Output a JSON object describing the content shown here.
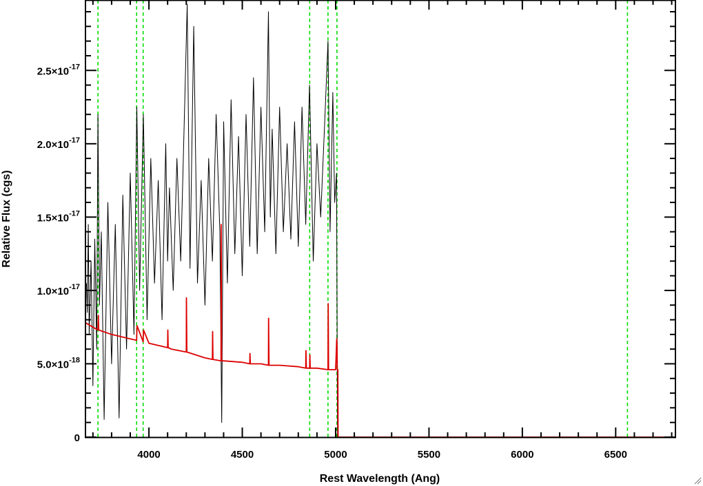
{
  "chart_data": {
    "type": "line",
    "xlabel": "Rest Wavelength (Ang)",
    "ylabel": "Relative Flux (cgs)",
    "xlim": [
      3660,
      6820
    ],
    "ylim": [
      0,
      2.98e-17
    ],
    "x_ticks": [
      {
        "value": 4000,
        "label": "4000"
      },
      {
        "value": 4500,
        "label": "4500"
      },
      {
        "value": 5000,
        "label": "5000"
      },
      {
        "value": 5500,
        "label": "5500"
      },
      {
        "value": 6000,
        "label": "6000"
      },
      {
        "value": 6500,
        "label": "6500"
      }
    ],
    "y_ticks": [
      {
        "value": 0,
        "mantissa": "0",
        "exponent": ""
      },
      {
        "value": 5e-18,
        "mantissa": "5.0×10",
        "exponent": "-18"
      },
      {
        "value": 1e-17,
        "mantissa": "1.0×10",
        "exponent": "-17"
      },
      {
        "value": 1.5e-17,
        "mantissa": "1.5×10",
        "exponent": "-17"
      },
      {
        "value": 2e-17,
        "mantissa": "2.0×10",
        "exponent": "-17"
      },
      {
        "value": 2.5e-17,
        "mantissa": "2.5×10",
        "exponent": "-17"
      }
    ],
    "vertical_lines": [
      3727,
      3934,
      3969,
      4861,
      4959,
      5007,
      6563
    ],
    "grid": false,
    "colors": {
      "observed": "#000000",
      "model": "#dd0000",
      "vlines": "#00dd00",
      "axes": "#000000"
    },
    "series": [
      {
        "x": [
          3665,
          3670,
          3675,
          3680,
          3690,
          3700,
          3710,
          3720,
          3727,
          3735,
          3745,
          3760,
          3780,
          3800,
          3820,
          3840,
          3860,
          3880,
          3900,
          3920,
          3935,
          3950,
          3970,
          3990,
          4010,
          4030,
          4050,
          4070,
          4090,
          4100,
          4110,
          4130,
          4150,
          4170,
          4190,
          4205,
          4220,
          4240,
          4260,
          4280,
          4300,
          4320,
          4340,
          4360,
          4380,
          4390,
          4400,
          4420,
          4440,
          4460,
          4480,
          4500,
          4520,
          4540,
          4560,
          4580,
          4600,
          4620,
          4640,
          4650,
          4660,
          4680,
          4700,
          4720,
          4740,
          4760,
          4780,
          4800,
          4820,
          4840,
          4860,
          4880,
          4900,
          4920,
          4940,
          4959,
          4970,
          4985,
          4995,
          5005,
          5010
        ],
        "values": [
          1.05e-17,
          8.5e-18,
          1.45e-17,
          7e-18,
          1.2e-17,
          3.5e-18,
          1.35e-17,
          6e-18,
          2.2e-17,
          9e-18,
          1.4e-17,
          1.2e-18,
          1.6e-17,
          5e-18,
          1.45e-17,
          1.3e-18,
          1.65e-17,
          6e-18,
          1.8e-17,
          7e-18,
          2.25e-17,
          1e-17,
          2.2e-17,
          8e-18,
          1.9e-17,
          1.05e-17,
          1.75e-17,
          8e-18,
          2e-17,
          1.2e-17,
          1.7e-17,
          1e-17,
          1.9e-17,
          1.2e-17,
          2.2e-17,
          2.95e-17,
          1.15e-17,
          2.8e-17,
          1.05e-17,
          1.75e-17,
          9e-18,
          1.9e-17,
          1.2e-17,
          2.2e-17,
          1.4e-17,
          1e-18,
          2.15e-17,
          1.05e-17,
          2.3e-17,
          1.25e-17,
          2.05e-17,
          1.1e-17,
          2.2e-17,
          1.3e-17,
          2.45e-17,
          1.25e-17,
          2.25e-17,
          1.4e-17,
          2.9e-17,
          1.5e-17,
          2.1e-17,
          1.25e-17,
          2.25e-17,
          1.4e-17,
          2e-17,
          1.35e-17,
          2.15e-17,
          1.3e-17,
          2.25e-17,
          1.45e-17,
          2.4e-17,
          1.2e-17,
          2e-17,
          1.5e-17,
          2.1e-17,
          2.7e-17,
          1.4e-17,
          2.35e-17,
          1.6e-17,
          1.8e-17,
          0
        ]
      },
      {
        "x": [
          3660,
          3700,
          3727,
          3729,
          3731,
          3800,
          3900,
          3934,
          3936,
          3969,
          3971,
          4000,
          4100,
          4101,
          4103,
          4120,
          4200,
          4201,
          4203,
          4300,
          4340,
          4341,
          4343,
          4386,
          4387,
          4389,
          4400,
          4500,
          4540,
          4541,
          4543,
          4600,
          4640,
          4641,
          4643,
          4700,
          4800,
          4840,
          4841,
          4843,
          4861,
          4862,
          4864,
          4900,
          4959,
          4960,
          4962,
          4980,
          5000,
          5006,
          5007,
          5009,
          5012,
          5013,
          6820
        ],
        "values": [
          7.8e-18,
          7.5e-18,
          7.3e-18,
          8.3e-18,
          7.3e-18,
          7e-18,
          6.7e-18,
          6.6e-18,
          7.6e-18,
          6.5e-18,
          7.3e-18,
          6.4e-18,
          6.1e-18,
          7.3e-18,
          6.1e-18,
          6e-18,
          5.8e-18,
          9.5e-18,
          5.8e-18,
          5.4e-18,
          5.3e-18,
          7.2e-18,
          5.3e-18,
          5.2e-18,
          1.45e-17,
          5.2e-18,
          5.2e-18,
          5.1e-18,
          5e-18,
          5.7e-18,
          5e-18,
          5e-18,
          4.9e-18,
          8.1e-18,
          4.9e-18,
          4.9e-18,
          4.8e-18,
          4.7e-18,
          5.9e-18,
          4.7e-18,
          4.7e-18,
          5.6e-18,
          4.7e-18,
          4.7e-18,
          4.6e-18,
          9.1e-18,
          4.6e-18,
          4.6e-18,
          4.6e-18,
          6.7e-18,
          6.4e-18,
          4.6e-18,
          4.6e-18,
          0,
          0
        ]
      }
    ]
  }
}
